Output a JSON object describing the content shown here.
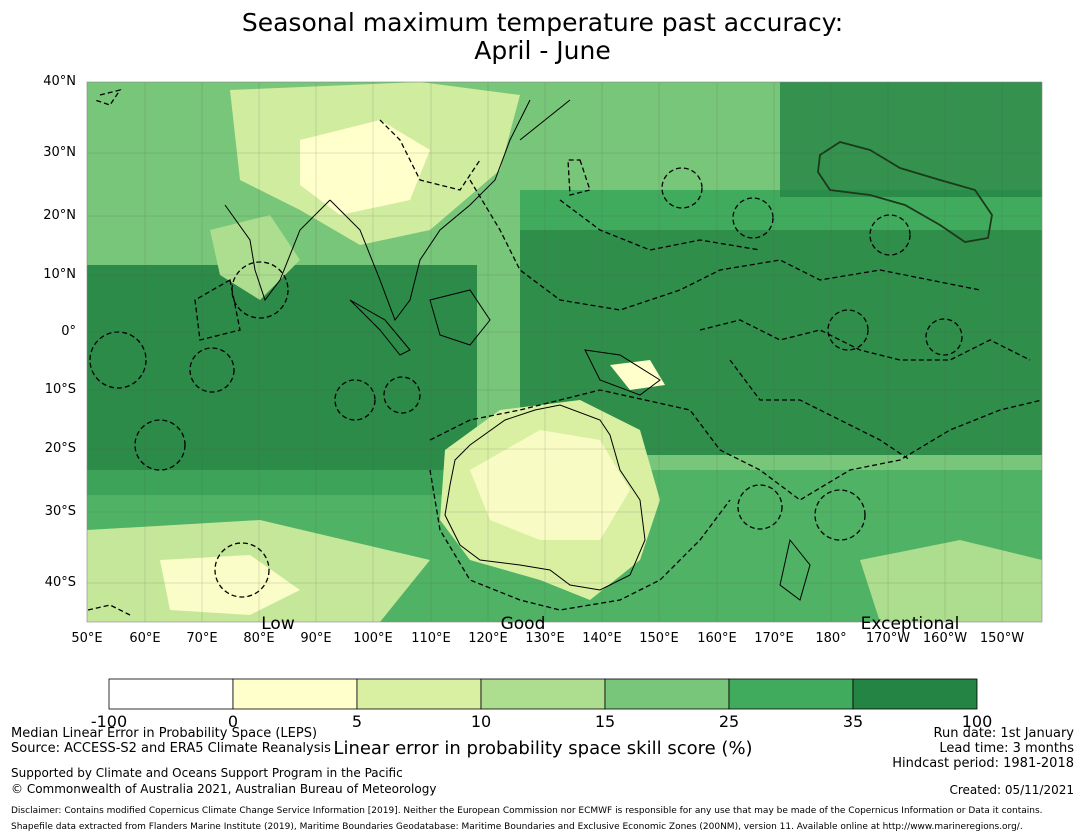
{
  "title": {
    "line1": "Seasonal maximum temperature past accuracy:",
    "line2": "April - June"
  },
  "map": {
    "lat_labels": [
      "40°N",
      "30°N",
      "20°N",
      "10°N",
      "0°",
      "10°S",
      "20°S",
      "30°S",
      "40°S"
    ],
    "lon_labels": [
      "50°E",
      "60°E",
      "70°E",
      "80°E",
      "90°E",
      "100°E",
      "110°E",
      "120°E",
      "130°E",
      "140°E",
      "150°E",
      "160°E",
      "170°E",
      "180°",
      "170°W",
      "160°W",
      "150°W"
    ],
    "skill_labels": [
      "Low",
      "Good",
      "Exceptional"
    ]
  },
  "colorbar": {
    "ticks": [
      "-100",
      "0",
      "5",
      "10",
      "15",
      "25",
      "35",
      "100"
    ],
    "colors": [
      "#ffffff",
      "#ffffcc",
      "#d9f0a3",
      "#addd8e",
      "#78c679",
      "#41ab5d",
      "#238443"
    ],
    "title": "Linear error in probability space skill score (%)"
  },
  "info": {
    "method": "Median Linear Error in Probability Space (LEPS)",
    "source": "Source: ACCESS-S2 and ERA5 Climate Reanalysis",
    "run_date": "Run date: 1st January",
    "lead_time": "Lead time: 3 months",
    "hindcast": "Hindcast period: 1981-2018",
    "support": "Supported by Climate and Oceans Support Program in the Pacific",
    "copyright": "© Commonwealth of Australia 2021, Australian Bureau of Meteorology",
    "created": "Created: 05/11/2021",
    "disclaimer": "Disclaimer: Contains modified Copernicus Climate Change Service Information [2019]. Neither the European Commission nor ECMWF is responsible for any use that may be made of the Copernicus Information or Data it contains.",
    "shapefile": "Shapefile data extracted from Flanders Marine Institute (2019), Maritime Boundaries Geodatabase: Maritime Boundaries and Exclusive Economic Zones (200NM), version 11. Available online at http://www.marineregions.org/."
  }
}
